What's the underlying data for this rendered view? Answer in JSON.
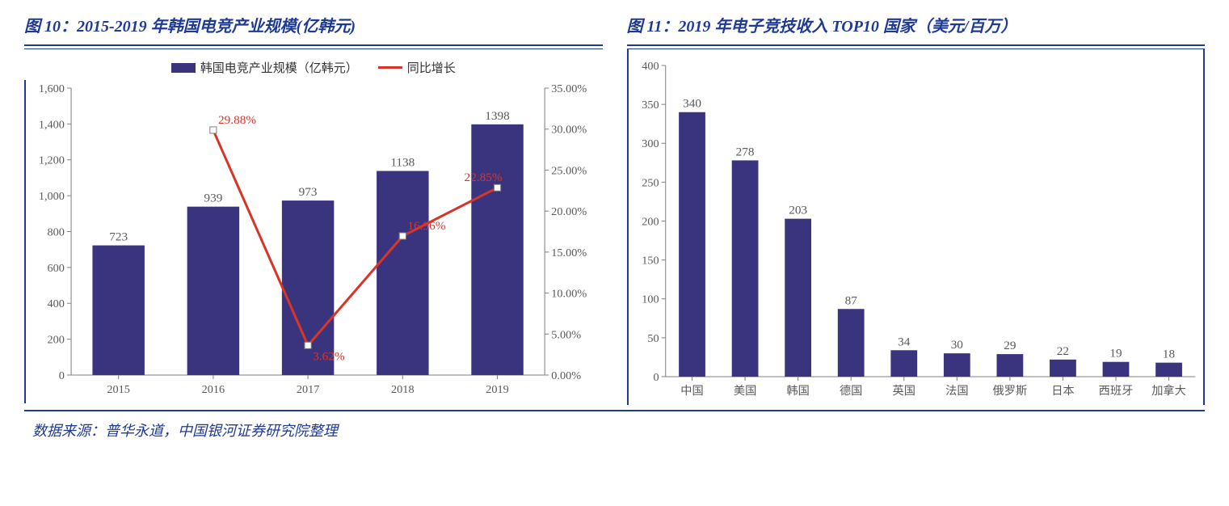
{
  "left_chart": {
    "title": "图 10：2015-2019 年韩国电竞产业规模(亿韩元)",
    "type": "bar+line",
    "legend_bar": "韩国电竞产业规模（亿韩元）",
    "legend_line": "同比增长",
    "categories": [
      "2015",
      "2016",
      "2017",
      "2018",
      "2019"
    ],
    "bar_values": [
      723,
      939,
      973,
      1138,
      1398
    ],
    "line_values": [
      null,
      29.88,
      3.62,
      16.96,
      22.85
    ],
    "line_labels": [
      "",
      "29.88%",
      "3.62%",
      "16.96%",
      "22.85%"
    ],
    "y1_min": 0,
    "y1_max": 1600,
    "y1_step": 200,
    "y2_min": 0,
    "y2_max": 35,
    "y2_step": 5,
    "y2_tick_labels": [
      "0.00%",
      "5.00%",
      "10.00%",
      "15.00%",
      "20.00%",
      "25.00%",
      "30.00%",
      "35.00%"
    ],
    "bar_color": "#3a347f",
    "line_color": "#d8352a",
    "line_label_color": "#d8352a",
    "axis_color": "#808080",
    "text_color": "#595959",
    "bar_width": 0.55,
    "font_size_axis": 14,
    "font_size_datalabel": 15
  },
  "right_chart": {
    "title": "图 11：2019 年电子竞技收入 TOP10 国家（美元/百万）",
    "type": "bar",
    "categories": [
      "中国",
      "美国",
      "韩国",
      "德国",
      "英国",
      "法国",
      "俄罗斯",
      "日本",
      "西班牙",
      "加拿大"
    ],
    "values": [
      340,
      278,
      203,
      87,
      34,
      30,
      29,
      22,
      19,
      18
    ],
    "y_min": 0,
    "y_max": 400,
    "y_step": 50,
    "bar_color": "#3a347f",
    "axis_color": "#808080",
    "text_color": "#595959",
    "bar_width": 0.5,
    "font_size_axis": 14,
    "font_size_datalabel": 15
  },
  "source": "数据来源：普华永道，中国银河证券研究院整理",
  "layout": {
    "title_color": "#1f3a93",
    "rule_color": "#1f3a93",
    "background": "#ffffff"
  }
}
